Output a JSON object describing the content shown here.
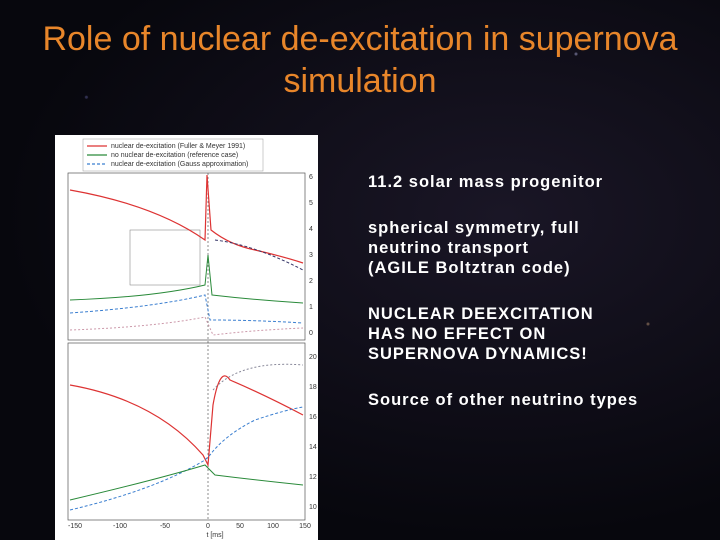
{
  "title": "Role of nuclear de-excitation in supernova simulation",
  "figure": {
    "legend": [
      "nuclear de-excitation (Fuller & Meyer 1991)",
      "no nuclear de-excitation (reference case)",
      "nuclear de-excitation (Gauss approximation)"
    ],
    "right_ticks_upper": [
      "6",
      "5",
      "4",
      "3",
      "2",
      "1",
      "0"
    ],
    "right_ticks_lower": [
      "20",
      "18",
      "16",
      "14",
      "12",
      "10"
    ],
    "x_ticks": [
      "-150",
      "-100",
      "-50",
      "0",
      "50",
      "100",
      "150"
    ],
    "x_label": "t [ms]"
  },
  "bullets": [
    [
      "11.2 solar mass progenitor"
    ],
    [
      "spherical symmetry, full",
      "neutrino transport",
      "(AGILE Boltztran code)"
    ],
    [
      "NUCLEAR DEEXCITATION",
      "HAS NO EFFECT ON",
      "SUPERNOVA DYNAMICS!"
    ],
    [
      "Source of other neutrino types"
    ]
  ]
}
